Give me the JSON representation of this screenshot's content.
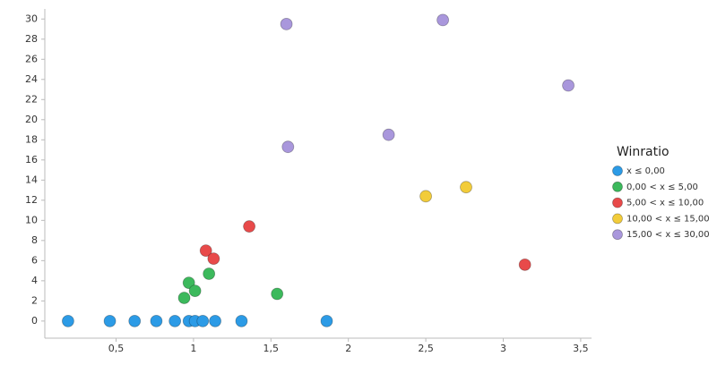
{
  "chart_data": {
    "type": "scatter",
    "legend_title": "Winratio",
    "legend": "right",
    "grid": false,
    "xlim": [
      0.04,
      3.57
    ],
    "xticks": [
      {
        "value": 0.5,
        "label": "0,5"
      },
      1,
      {
        "value": 1.5,
        "label": "1,5"
      },
      2,
      {
        "value": 2.5,
        "label": "2,5"
      },
      3,
      {
        "value": 3.5,
        "label": "3,5"
      }
    ],
    "ylim": [
      -1.7,
      31
    ],
    "yticks": [
      0,
      2,
      4,
      6,
      8,
      10,
      12,
      14,
      16,
      18,
      20,
      22,
      24,
      26,
      28,
      30
    ],
    "series": [
      {
        "name": "x ≤ 0,00",
        "color": "#2c9be6",
        "x": [
          0.19,
          0.46,
          0.62,
          0.76,
          0.88,
          0.97,
          1.01,
          1.06,
          1.14,
          1.31,
          1.86
        ],
        "values": [
          0,
          0,
          0,
          0,
          0,
          0,
          0,
          0,
          0,
          0,
          0
        ]
      },
      {
        "name": "0,00 < x ≤ 5,00",
        "color": "#3cb95c",
        "x": [
          0.94,
          0.97,
          1.01,
          1.1,
          1.54
        ],
        "values": [
          2.3,
          3.8,
          3.0,
          4.7,
          2.7
        ]
      },
      {
        "name": "5,00 < x ≤ 10,00",
        "color": "#e84a4a",
        "x": [
          1.08,
          1.13,
          1.36,
          3.14
        ],
        "values": [
          7.0,
          6.2,
          9.4,
          5.6
        ]
      },
      {
        "name": "10,00 < x ≤ 15,00",
        "color": "#f2cc3a",
        "x": [
          2.5,
          2.76
        ],
        "values": [
          12.4,
          13.3
        ]
      },
      {
        "name": "15,00 < x ≤ 30,00",
        "color": "#a997dc",
        "x": [
          1.6,
          1.61,
          2.26,
          2.61,
          3.42
        ],
        "values": [
          29.5,
          17.3,
          18.5,
          29.9,
          23.4
        ]
      }
    ]
  }
}
